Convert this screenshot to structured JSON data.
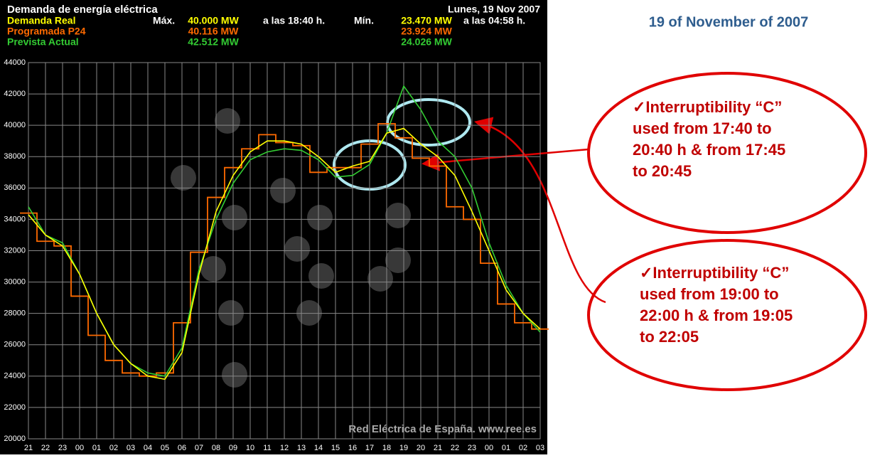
{
  "chart_data": {
    "type": "line",
    "title": "Demanda de energía eléctrica",
    "date": "Lunes, 19 Nov 2007",
    "header": {
      "max_prefix": "Máx.",
      "max_time": "a las 18:40 h.",
      "min_prefix": "Mín.",
      "min_time": "a las 04:58 h."
    },
    "categories": [
      "21",
      "22",
      "23",
      "00",
      "01",
      "02",
      "03",
      "04",
      "05",
      "06",
      "07",
      "08",
      "09",
      "10",
      "11",
      "12",
      "13",
      "14",
      "15",
      "16",
      "17",
      "18",
      "19",
      "20",
      "21",
      "22",
      "23",
      "00",
      "01",
      "02",
      "03"
    ],
    "series": [
      {
        "name": "Demanda Real",
        "color": "#ffff00",
        "max_label": "40.000 MW",
        "min_label": "23.470 MW",
        "style": "line",
        "values": [
          34300,
          33000,
          32300,
          30500,
          28000,
          26000,
          24800,
          24000,
          23800,
          25500,
          30500,
          34500,
          36800,
          38300,
          39000,
          39000,
          38800,
          38000,
          37000,
          37400,
          37700,
          39500,
          39800,
          38800,
          38000,
          36800,
          34500,
          32000,
          29500,
          28000,
          27000
        ]
      },
      {
        "name": "Programada P24",
        "color": "#ff6a00",
        "max_label": "40.116 MW",
        "min_label": "23.924 MW",
        "style": "step",
        "values": [
          34400,
          32600,
          32300,
          29100,
          26600,
          25000,
          24200,
          24000,
          24200,
          27400,
          31900,
          35400,
          37300,
          38500,
          39400,
          38900,
          38700,
          37000,
          37300,
          37300,
          38800,
          40100,
          39200,
          37900,
          37400,
          34800,
          34000,
          31200,
          28600,
          27400,
          27000
        ]
      },
      {
        "name": "Prevista Actual",
        "color": "#33cc33",
        "max_label": "42.512 MW",
        "min_label": "24.026 MW",
        "style": "line",
        "values": [
          34800,
          33000,
          32500,
          30500,
          28000,
          26000,
          24800,
          24200,
          24000,
          25800,
          30800,
          34000,
          36300,
          37800,
          38300,
          38500,
          38400,
          37800,
          36700,
          36800,
          37500,
          39500,
          42500,
          41000,
          39000,
          38000,
          36000,
          32500,
          29800,
          28000,
          26800
        ]
      }
    ],
    "ylim": [
      20000,
      44000
    ],
    "yticks": [
      20000,
      22000,
      24000,
      26000,
      28000,
      30000,
      32000,
      34000,
      36000,
      38000,
      40000,
      42000,
      44000
    ],
    "grid": true,
    "watermark": "Red Eléctrica de España.   www.ree.es"
  },
  "slide": {
    "heading": "19 of November of 2007",
    "callouts": [
      {
        "lines": [
          "✓Interruptibility “C”",
          "used from 17:40 to",
          "20:40 h & from 17:45",
          "to 20:45"
        ]
      },
      {
        "lines": [
          "✓Interruptibility “C”",
          "used from 19:00 to",
          "22:00 h & from 19:05",
          "to 22:05"
        ]
      }
    ]
  }
}
